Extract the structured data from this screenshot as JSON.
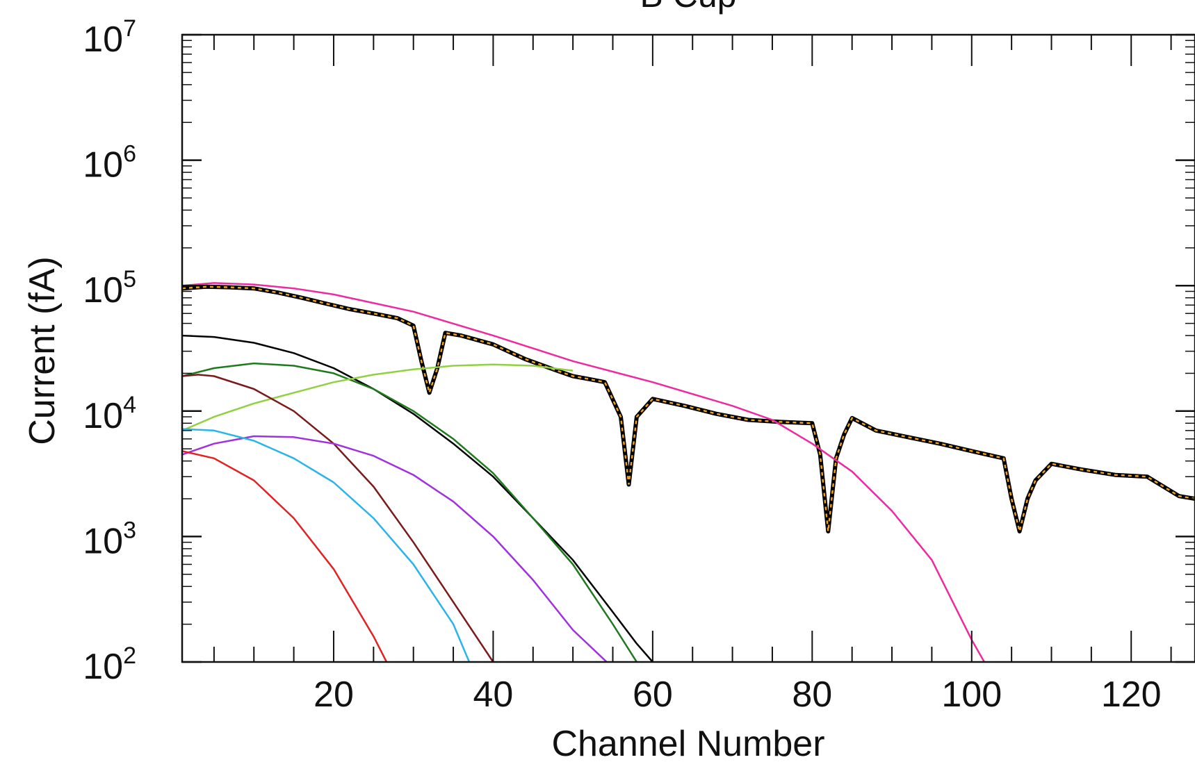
{
  "chart_data": {
    "type": "line",
    "title": "B Cup",
    "xlabel": "Channel Number",
    "ylabel": "Current (fA)",
    "xlim": [
      1,
      128
    ],
    "ylim": [
      100,
      10000000
    ],
    "yscale": "log",
    "grid": false,
    "x_ticks": [
      20,
      40,
      60,
      80,
      100,
      120
    ],
    "x_tick_labels": [
      "20",
      "40",
      "60",
      "80",
      "100",
      "120"
    ],
    "y_ticks": [
      100,
      1000,
      10000,
      100000,
      1000000,
      10000000
    ],
    "y_tick_labels": [
      {
        "base": "10",
        "exp": "2"
      },
      {
        "base": "10",
        "exp": "3"
      },
      {
        "base": "10",
        "exp": "4"
      },
      {
        "base": "10",
        "exp": "5"
      },
      {
        "base": "10",
        "exp": "6"
      },
      {
        "base": "10",
        "exp": "7"
      }
    ],
    "series": [
      {
        "color": "#000000",
        "style": "solid-thick-with-orange-dashes",
        "x": [
          1,
          4,
          7,
          10,
          13,
          16,
          19,
          22,
          25,
          28,
          30,
          31,
          32,
          33,
          34,
          36,
          40,
          44,
          48,
          50,
          52,
          54,
          56,
          57,
          58,
          60,
          64,
          68,
          72,
          76,
          80,
          81,
          82,
          83,
          84,
          85,
          88,
          92,
          96,
          100,
          104,
          105,
          106,
          107,
          108,
          110,
          114,
          118,
          122,
          126,
          128
        ],
        "y": [
          95000,
          98000,
          97000,
          95000,
          88000,
          80000,
          72000,
          65000,
          60000,
          55000,
          48000,
          25000,
          14000,
          22000,
          42000,
          40000,
          34000,
          26000,
          21000,
          19000,
          18000,
          17000,
          9000,
          2600,
          9000,
          12500,
          11000,
          9500,
          8500,
          8200,
          8000,
          4500,
          1100,
          4200,
          6500,
          8800,
          7000,
          6200,
          5500,
          4800,
          4200,
          2000,
          1100,
          2000,
          2800,
          3800,
          3400,
          3100,
          3000,
          2100,
          2000
        ]
      },
      {
        "color": "#ee2aa0",
        "style": "solid",
        "x": [
          1,
          5,
          10,
          15,
          20,
          30,
          40,
          50,
          60,
          70,
          75,
          80,
          85,
          90,
          95,
          100,
          102
        ],
        "y": [
          100000,
          105000,
          102000,
          95000,
          85000,
          62000,
          40000,
          25000,
          17000,
          11000,
          8500,
          5500,
          3300,
          1600,
          650,
          150,
          90
        ]
      },
      {
        "color": "#000000",
        "style": "solid",
        "x": [
          1,
          5,
          10,
          15,
          20,
          25,
          30,
          35,
          40,
          45,
          50,
          55,
          58,
          60
        ],
        "y": [
          40000,
          39000,
          35000,
          29000,
          22000,
          15000,
          9500,
          5500,
          3000,
          1400,
          650,
          250,
          140,
          100
        ]
      },
      {
        "color": "#1d7a1d",
        "style": "solid",
        "x": [
          1,
          5,
          10,
          15,
          20,
          25,
          30,
          35,
          40,
          45,
          50,
          55,
          58
        ],
        "y": [
          19000,
          22000,
          24000,
          23000,
          20000,
          15000,
          10000,
          6000,
          3200,
          1400,
          600,
          200,
          100
        ]
      },
      {
        "color": "#8fd13f",
        "style": "solid",
        "x": [
          1,
          5,
          10,
          15,
          20,
          25,
          30,
          35,
          40,
          45,
          50
        ],
        "y": [
          7000,
          9000,
          11500,
          14000,
          17000,
          19500,
          21500,
          23000,
          23500,
          23000,
          21000
        ]
      },
      {
        "color": "#7a1a1a",
        "style": "solid",
        "x": [
          1,
          3,
          5,
          10,
          15,
          20,
          25,
          30,
          35,
          40
        ],
        "y": [
          19000,
          19500,
          19000,
          15000,
          10000,
          5500,
          2500,
          900,
          300,
          100
        ]
      },
      {
        "color": "#a030e0",
        "style": "solid",
        "x": [
          1,
          5,
          10,
          15,
          20,
          25,
          30,
          35,
          40,
          45,
          50,
          55
        ],
        "y": [
          4500,
          5500,
          6300,
          6200,
          5500,
          4400,
          3100,
          1900,
          1000,
          450,
          180,
          90
        ]
      },
      {
        "color": "#2ab4ea",
        "style": "solid",
        "x": [
          1,
          5,
          10,
          15,
          20,
          25,
          30,
          35,
          37
        ],
        "y": [
          7200,
          7000,
          5800,
          4200,
          2700,
          1400,
          600,
          200,
          100
        ]
      },
      {
        "color": "#e22222",
        "style": "solid",
        "x": [
          1,
          5,
          10,
          15,
          20,
          25,
          27
        ],
        "y": [
          4800,
          4200,
          2800,
          1400,
          550,
          160,
          90
        ]
      }
    ]
  }
}
